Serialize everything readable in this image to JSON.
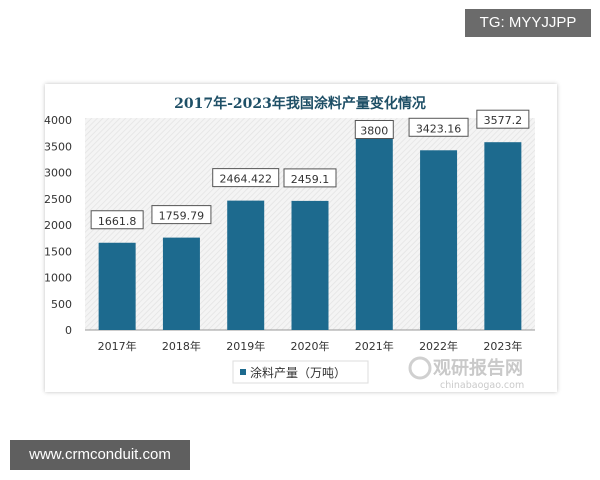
{
  "watermark_top": "TG: MYYJJPP",
  "watermark_bottom": "www.crmconduit.com",
  "logo": {
    "name": "观研报告网",
    "url_text": "chinabaogao.com"
  },
  "colors": {
    "bar": "#1d6a8e",
    "title": "#1e4f66"
  },
  "chart_data": {
    "type": "bar",
    "title": "2017年-2023年我国涂料产量变化情况",
    "categories": [
      "2017年",
      "2018年",
      "2019年",
      "2020年",
      "2021年",
      "2022年",
      "2023年"
    ],
    "series": [
      {
        "name": "涂料产量（万吨）",
        "values": [
          1661.8,
          1759.79,
          2464.422,
          2459.1,
          3800,
          3423.16,
          3577.2
        ]
      }
    ],
    "data_labels": [
      "1661.8",
      "1759.79",
      "2464.422",
      "2459.1",
      "3800",
      "3423.16",
      "3577.2"
    ],
    "yticks": [
      "0",
      "500",
      "1000",
      "1500",
      "2000",
      "2500",
      "3000",
      "3500",
      "4000"
    ],
    "ylim": [
      0,
      4000
    ],
    "legend": "bottom",
    "grid": false
  }
}
